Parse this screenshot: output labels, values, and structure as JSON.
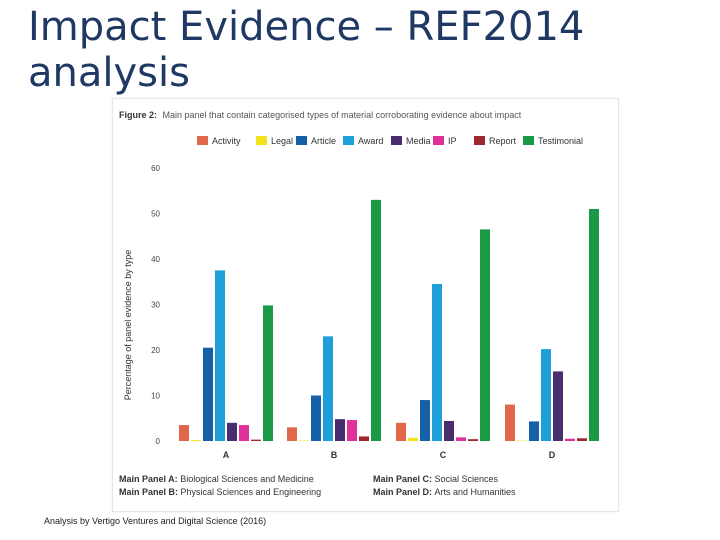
{
  "slide": {
    "title": "Impact Evidence – REF2014\nanalysis",
    "credit": "Analysis by Vertigo Ventures and Digital Science (2016)"
  },
  "figure": {
    "label": "Figure 2:",
    "caption": "Main panel that contain categorised types of material corroborating evidence about impact",
    "footnotes": [
      {
        "key": "Main Panel A:",
        "text": "Biological Sciences and Medicine"
      },
      {
        "key": "Main Panel B:",
        "text": "Physical Sciences and Engineering"
      },
      {
        "key": "Main Panel C:",
        "text": "Social Sciences"
      },
      {
        "key": "Main Panel D:",
        "text": "Arts and Humanities"
      }
    ]
  },
  "colors": {
    "Activity": "#e0674a",
    "Legal": "#f2e21b",
    "Article": "#1660a8",
    "Award": "#1e9fd9",
    "Media": "#4a2d6e",
    "IP": "#e0309a",
    "Report": "#9e2730",
    "Testimonial": "#1a9a47"
  },
  "chart_data": {
    "type": "bar",
    "title": "Main panel that contain categorised types of material corroborating evidence about impact",
    "xlabel": "",
    "ylabel": "Percentage of panel evidence by type",
    "ylim": [
      0,
      60
    ],
    "yticks": [
      0,
      10,
      20,
      30,
      40,
      50,
      60
    ],
    "grid": false,
    "legend_position": "top",
    "categories": [
      "A",
      "B",
      "C",
      "D"
    ],
    "series": [
      {
        "name": "Activity",
        "values": [
          3.5,
          3,
          4,
          8
        ]
      },
      {
        "name": "Legal",
        "values": [
          0.2,
          0.1,
          0.7,
          0.1
        ]
      },
      {
        "name": "Article",
        "values": [
          20.5,
          10,
          9,
          4.3
        ]
      },
      {
        "name": "Award",
        "values": [
          37.5,
          23,
          34.5,
          20.2
        ]
      },
      {
        "name": "Media",
        "values": [
          4,
          4.8,
          4.4,
          15.3
        ]
      },
      {
        "name": "IP",
        "values": [
          3.5,
          4.6,
          0.8,
          0.5
        ]
      },
      {
        "name": "Report",
        "values": [
          0.3,
          1,
          0.4,
          0.6
        ]
      },
      {
        "name": "Testimonial",
        "values": [
          29.8,
          53,
          46.5,
          51
        ]
      }
    ]
  }
}
